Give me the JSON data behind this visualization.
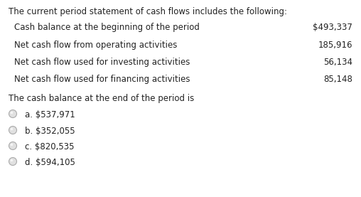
{
  "title": "The current period statement of cash flows includes the following:",
  "rows": [
    {
      "label": "Cash balance at the beginning of the period",
      "value": "$493,337"
    },
    {
      "label": "Net cash flow from operating activities",
      "value": "185,916"
    },
    {
      "label": "Net cash flow used for investing activities",
      "value": "56,134"
    },
    {
      "label": "Net cash flow used for financing activities",
      "value": "85,148"
    }
  ],
  "question": "The cash balance at the end of the period is",
  "choices": [
    "a. $537,971",
    "b. $352,055",
    "c. $820,535",
    "d. $594,105"
  ],
  "bg_color": "#ffffff",
  "text_color": "#222222",
  "font_size": 8.5,
  "radio_color": "#aaaaaa",
  "radio_inner_color": "#e0e0e0"
}
